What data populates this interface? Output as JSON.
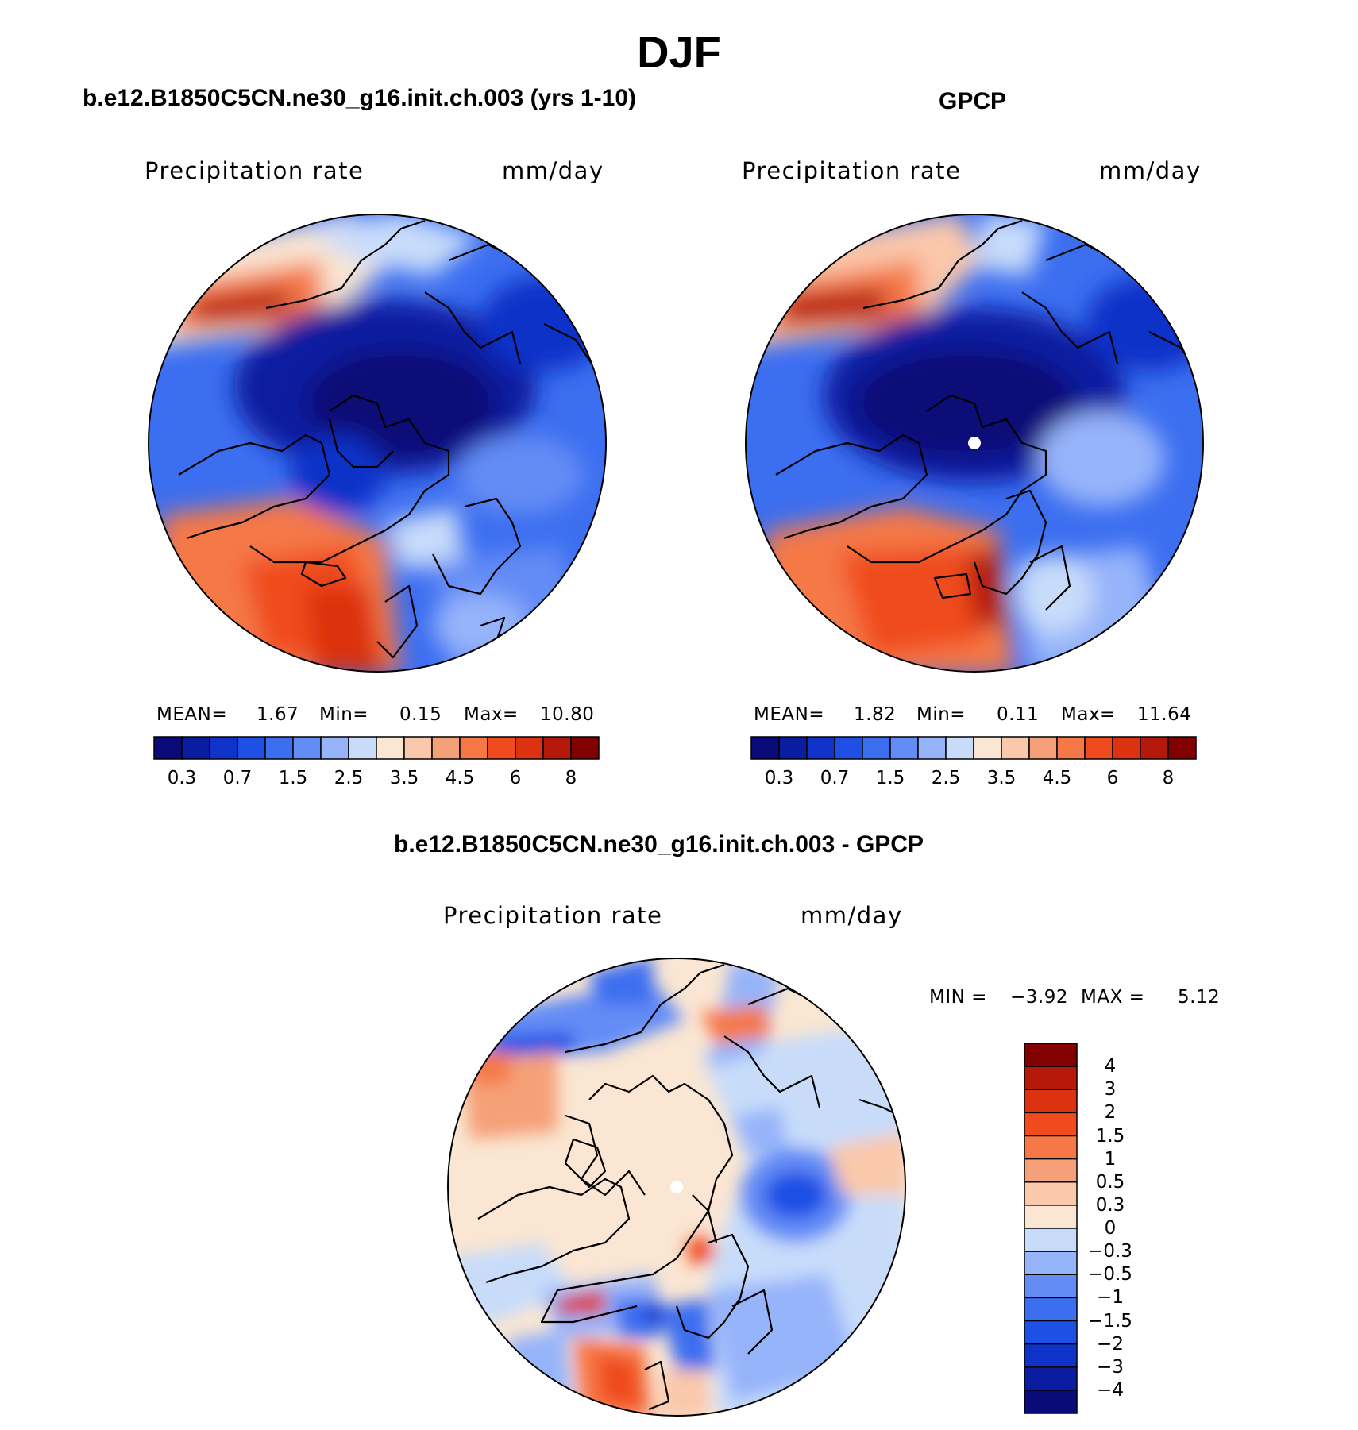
{
  "title": "DJF",
  "panels": [
    {
      "title": "b.e12.B1850C5CN.ne30_g16.init.ch.003 (yrs 1-10)",
      "variable": "Precipitation rate",
      "units": "mm/day",
      "stats": {
        "mean_label": "MEAN=",
        "mean": "1.67",
        "min_label": "Min=",
        "min": "0.15",
        "max_label": "Max=",
        "max": "10.80"
      }
    },
    {
      "title": "GPCP",
      "variable": "Precipitation rate",
      "units": "mm/day",
      "stats": {
        "mean_label": "MEAN=",
        "mean": "1.82",
        "min_label": "Min=",
        "min": "0.11",
        "max_label": "Max=",
        "max": "11.64"
      }
    },
    {
      "title": "b.e12.B1850C5CN.ne30_g16.init.ch.003 - GPCP",
      "variable": "Precipitation rate",
      "units": "mm/day",
      "stats": {
        "min_label": "MIN =",
        "min": "−3.92",
        "max_label": "MAX =",
        "max": "5.12"
      }
    }
  ],
  "colorbar_horizontal": {
    "ticks": [
      "0.3",
      "0.7",
      "1.5",
      "2.5",
      "3.5",
      "4.5",
      "6",
      "8"
    ],
    "colors": [
      "#0a0a78",
      "#0a1ca0",
      "#0f32c8",
      "#1e50e6",
      "#3c6ef0",
      "#648cf5",
      "#96b4fa",
      "#c8dcfa",
      "#fae6d2",
      "#fac8aa",
      "#f5a078",
      "#f57846",
      "#f04b1e",
      "#dc320f",
      "#b4190a",
      "#820000"
    ]
  },
  "colorbar_vertical": {
    "labels": [
      "4",
      "3",
      "2",
      "1.5",
      "1",
      "0.5",
      "0.3",
      "0",
      "−0.3",
      "−0.5",
      "−1",
      "−1.5",
      "−2",
      "−3",
      "−4"
    ],
    "colors": [
      "#820000",
      "#b4190a",
      "#dc320f",
      "#f04b1e",
      "#f57846",
      "#f5a078",
      "#fac8aa",
      "#fae6d2",
      "#c8dcfa",
      "#96b4fa",
      "#648cf5",
      "#3c6ef0",
      "#1e50e6",
      "#0f32c8",
      "#0a1ca0",
      "#0a0a78"
    ]
  }
}
